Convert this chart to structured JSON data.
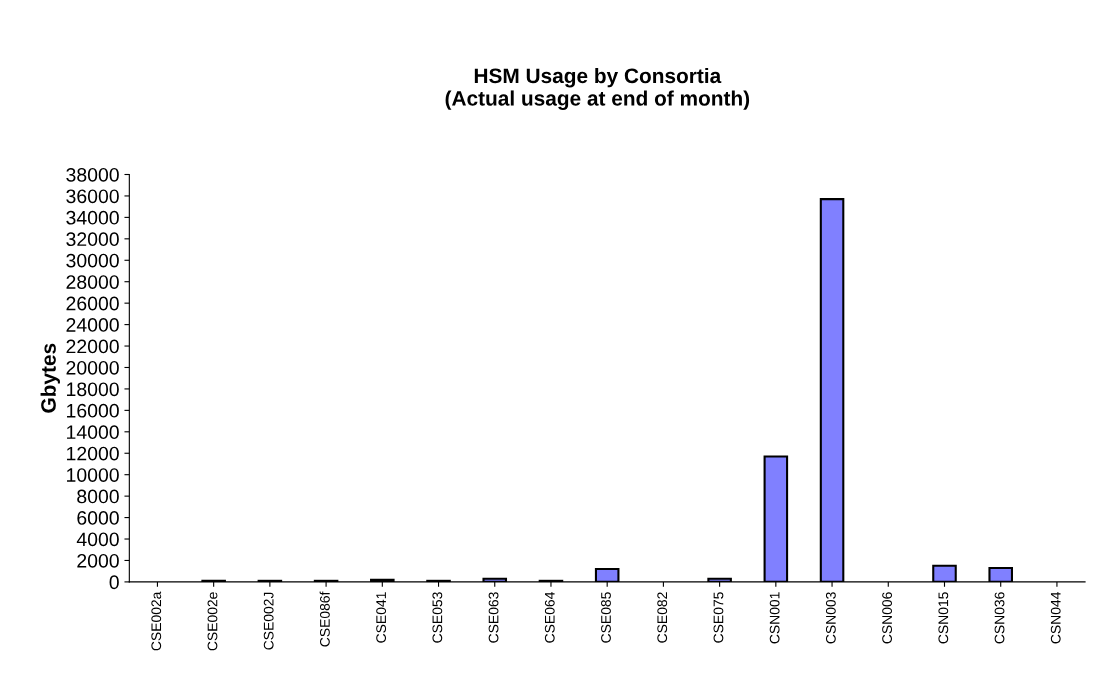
{
  "chart_data": {
    "type": "bar",
    "title": "HSM Usage by Consortia\n(Actual usage at end of month)",
    "ylabel": "Gbytes",
    "categories": [
      "CSE002a",
      "CSE002e",
      "CSE002J",
      "CSE086f",
      "CSE041",
      "CSE053",
      "CSE063",
      "CSE064",
      "CSE085",
      "CSE082",
      "CSE075",
      "CSN001",
      "CSN003",
      "CSN006",
      "CSN015",
      "CSN036",
      "CSN044"
    ],
    "values": [
      0,
      100,
      100,
      100,
      200,
      100,
      300,
      100,
      1200,
      0,
      300,
      11700,
      35700,
      0,
      1500,
      1300,
      0
    ],
    "color": "#8080ff",
    "ylim": [
      0,
      38000
    ],
    "yticks": [
      0,
      2000,
      4000,
      6000,
      8000,
      10000,
      12000,
      14000,
      16000,
      18000,
      20000,
      22000,
      24000,
      26000,
      28000,
      30000,
      32000,
      34000,
      36000,
      38000
    ],
    "grid": false,
    "legend": false
  }
}
